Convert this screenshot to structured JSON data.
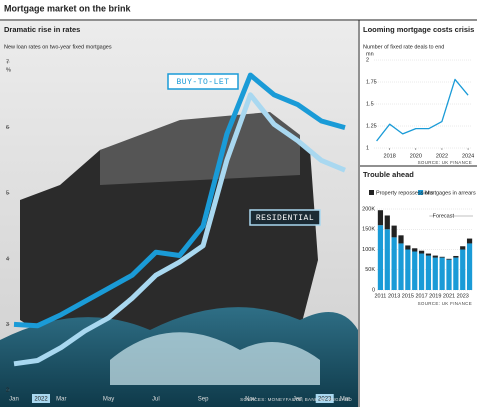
{
  "title": "Mortgage market on the brink",
  "chart_data": [
    {
      "type": "line",
      "title": "Dramatic rise in rates",
      "subtitle": "New loan rates on two-year fixed mortgages",
      "y_unit": "%",
      "categories": [
        "Jan",
        null,
        "Mar",
        null,
        "May",
        null,
        "Jul",
        null,
        "Sep",
        null,
        "Nov",
        null,
        "Jan",
        null,
        "Mar"
      ],
      "year_labels": [
        "2022",
        "2023"
      ],
      "series": [
        {
          "name": "BUY-TO-LET",
          "color": "#1a9bd7",
          "values": [
            3.0,
            2.98,
            3.15,
            3.35,
            3.55,
            3.75,
            4.1,
            4.05,
            4.5,
            5.9,
            6.8,
            6.5,
            6.35,
            6.1,
            6.0
          ]
        },
        {
          "name": "RESIDENTIAL",
          "color": "#a9d8f0",
          "values": [
            2.4,
            2.45,
            2.65,
            2.9,
            3.1,
            3.4,
            3.75,
            3.95,
            4.2,
            5.5,
            6.5,
            6.05,
            5.8,
            5.5,
            5.35
          ]
        }
      ],
      "ylim": [
        2,
        7
      ],
      "yticks": [
        2,
        3,
        4,
        5,
        6,
        7
      ],
      "source": "SOURCES: MONEYFACTS, BANK OF ENGLAND"
    },
    {
      "type": "line",
      "title": "Looming mortgage costs crisis",
      "subtitle": "Number of fixed rate deals to end",
      "y_unit": "mn",
      "x": [
        2017,
        2018,
        2019,
        2020,
        2021,
        2022,
        2023,
        2024
      ],
      "series": [
        {
          "name": null,
          "color": "#1a9bd7",
          "values": [
            1.08,
            1.27,
            1.16,
            1.22,
            1.22,
            1.3,
            1.78,
            1.6
          ]
        }
      ],
      "xlim": [
        2016.8,
        2024.3
      ],
      "xticks": [
        2018,
        2020,
        2022,
        2024
      ],
      "ylim": [
        1,
        2
      ],
      "yticks": [
        1,
        1.25,
        1.5,
        1.75,
        2
      ],
      "grid": true,
      "source": "SOURCE: UK FINANCE"
    },
    {
      "type": "bar",
      "stacked": true,
      "title": "Trouble ahead",
      "categories": [
        "2011",
        null,
        "2013",
        null,
        "2015",
        null,
        "2017",
        null,
        "2019",
        null,
        "2021",
        null,
        "2023",
        null
      ],
      "series": [
        {
          "name": "Mortgages in arrears",
          "color": "#1a9bd7",
          "values": [
            160000,
            150000,
            130000,
            115000,
            100000,
            95000,
            90000,
            85000,
            80000,
            80000,
            75000,
            80000,
            100000,
            115000
          ]
        },
        {
          "name": "Property repossessions",
          "color": "#222222",
          "values": [
            37000,
            34000,
            29000,
            20000,
            10000,
            8000,
            7000,
            5000,
            5000,
            2000,
            2000,
            4000,
            8000,
            12000
          ]
        }
      ],
      "ylim": [
        0,
        200000
      ],
      "yticks": [
        0,
        {
          "value": 50000,
          "label": "50K"
        },
        {
          "value": 100000,
          "label": "100K"
        },
        {
          "value": 150000,
          "label": "150K"
        },
        {
          "value": 200000,
          "label": "200K"
        }
      ],
      "grid": true,
      "annotations": [
        "Forecast"
      ],
      "source": "SOURCE: UK FINANCE"
    }
  ]
}
